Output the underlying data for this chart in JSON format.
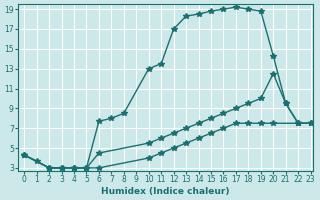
{
  "xlabel": "Humidex (Indice chaleur)",
  "ylabel": "",
  "xlim": [
    0,
    23
  ],
  "ylim": [
    3,
    19
  ],
  "yticks": [
    3,
    5,
    7,
    9,
    11,
    13,
    15,
    17,
    19
  ],
  "xticks": [
    0,
    1,
    2,
    3,
    4,
    5,
    6,
    7,
    8,
    9,
    10,
    11,
    12,
    13,
    14,
    15,
    16,
    17,
    18,
    19,
    20,
    21,
    22,
    23
  ],
  "bg_color": "#cce8e8",
  "grid_color": "#ffffff",
  "line_color": "#1a7070",
  "line1_x": [
    0,
    1,
    2,
    3,
    4,
    5,
    6,
    7,
    8,
    10,
    11,
    12,
    13,
    14,
    15,
    16,
    17,
    18,
    19,
    20,
    21,
    22,
    23
  ],
  "line1_y": [
    4.3,
    3.7,
    3.0,
    3.0,
    3.0,
    3.0,
    7.7,
    8.0,
    8.5,
    13.0,
    13.5,
    17.0,
    18.3,
    18.5,
    18.8,
    19.0,
    19.2,
    19.0,
    18.8,
    14.3,
    9.5,
    7.5,
    7.5
  ],
  "line2_x": [
    0,
    2,
    3,
    4,
    5,
    6,
    10,
    11,
    12,
    13,
    14,
    15,
    16,
    17,
    18,
    19,
    20,
    21,
    22,
    23
  ],
  "line2_y": [
    4.3,
    3.0,
    3.0,
    3.0,
    3.0,
    4.5,
    5.5,
    6.0,
    6.5,
    7.0,
    7.5,
    8.0,
    8.5,
    9.0,
    9.5,
    10.0,
    12.5,
    9.5,
    7.5,
    7.5
  ],
  "line3_x": [
    0,
    2,
    3,
    4,
    5,
    6,
    10,
    11,
    12,
    13,
    14,
    15,
    16,
    17,
    18,
    19,
    20,
    22,
    23
  ],
  "line3_y": [
    4.3,
    3.0,
    3.0,
    3.0,
    3.0,
    3.0,
    4.0,
    4.5,
    5.0,
    5.5,
    6.0,
    6.5,
    7.0,
    7.5,
    7.5,
    7.5,
    7.5,
    7.5,
    7.5
  ]
}
